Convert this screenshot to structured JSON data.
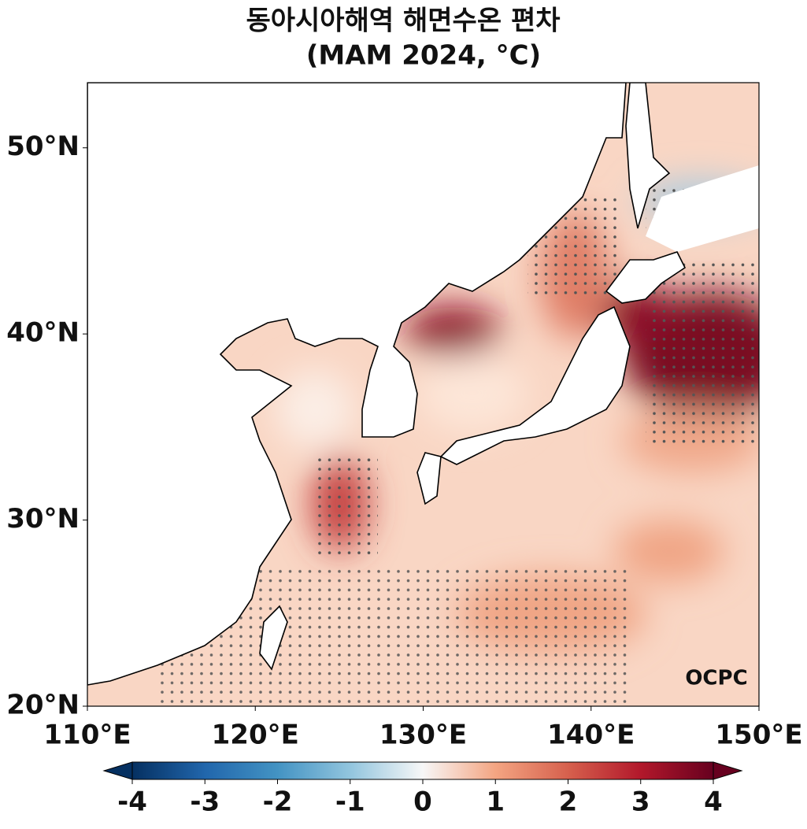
{
  "map": {
    "title": [
      "동아시아해역 해면수온 편차",
      "(MAM 2024, °C)"
    ],
    "lonlim": [
      110,
      150
    ],
    "latlim": [
      20,
      53.5
    ],
    "lon_ticks": [
      {
        "value": 110,
        "label": "110°E"
      },
      {
        "value": 120,
        "label": "120°E"
      },
      {
        "value": 130,
        "label": "130°E"
      },
      {
        "value": 140,
        "label": "140°E"
      },
      {
        "value": 150,
        "label": "150°E"
      }
    ],
    "lat_ticks": [
      {
        "value": 20,
        "label": "20°N"
      },
      {
        "value": 30,
        "label": "30°N"
      },
      {
        "value": 40,
        "label": "40°N"
      },
      {
        "value": 50,
        "label": "50°N"
      }
    ],
    "colorbar": {
      "lim": [
        -4,
        4
      ],
      "ticks": [
        -4,
        -3,
        -2,
        -1,
        0,
        1,
        2,
        3,
        4
      ]
    },
    "logo": "OCPC"
  }
}
